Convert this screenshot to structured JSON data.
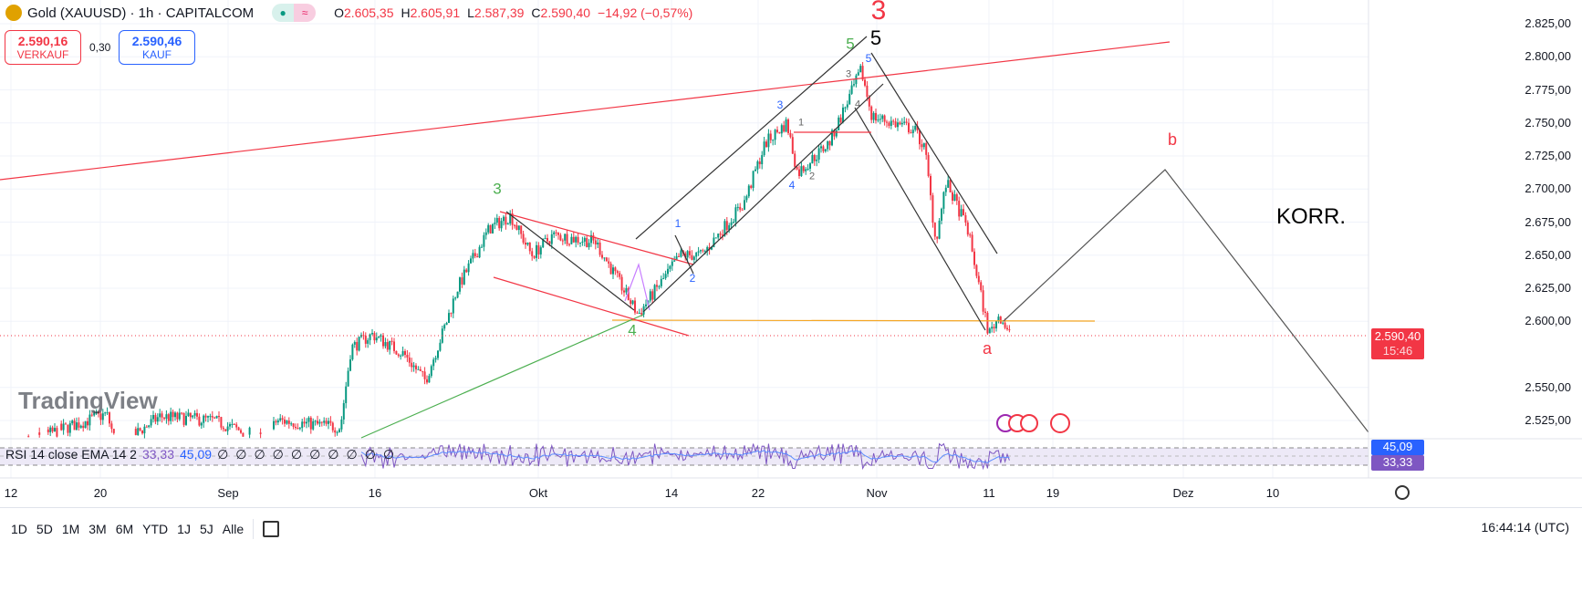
{
  "header": {
    "title": "Gold (XAUUSD) · 1h · CAPITALCOM",
    "open_label": "O",
    "open": "2.605,35",
    "high_label": "H",
    "high": "2.605,91",
    "low_label": "L",
    "low": "2.587,39",
    "close_label": "C",
    "close": "2.590,40",
    "change": "−14,92 (−0,57%)",
    "market_status_icon": "≈"
  },
  "trade": {
    "sell_price": "2.590,16",
    "sell_label": "VERKAUF",
    "spread": "0,30",
    "buy_price": "2.590,46",
    "buy_label": "KAUF"
  },
  "colors": {
    "up": "#089981",
    "down": "#f23645",
    "buy": "#2962ff",
    "rsi": "#7e57c2"
  },
  "price_axis": {
    "labels": [
      "2.825,00",
      "2.800,00",
      "2.775,00",
      "2.750,00",
      "2.725,00",
      "2.700,00",
      "2.675,00",
      "2.650,00",
      "2.625,00",
      "2.600,00",
      "2.550,00",
      "2.525,00"
    ],
    "last_price": "2.590,40",
    "countdown": "15:46"
  },
  "rsi": {
    "legend": "RSI 14 close EMA 14 2",
    "rsi_value": "33,33",
    "ema_value": "45,09",
    "na_values": [
      "∅",
      "∅",
      "∅",
      "∅",
      "∅",
      "∅",
      "∅",
      "∅",
      "∅",
      "∅"
    ]
  },
  "time_axis": {
    "labels": [
      "12",
      "20",
      "Sep",
      "16",
      "Okt",
      "14",
      "22",
      "Nov",
      "11",
      "19",
      "Dez",
      "10"
    ]
  },
  "annotations": {
    "red3": "3",
    "black5": "5",
    "green5": "5",
    "green3": "3",
    "green4": "4",
    "a": "a",
    "b": "b",
    "korr": "KORR.",
    "blue": [
      "1",
      "2",
      "3",
      "4",
      "5"
    ],
    "gray": [
      "1",
      "2",
      "3",
      "4"
    ]
  },
  "watermark": "TradingView",
  "bottom": {
    "ranges": [
      "1D",
      "5D",
      "1M",
      "3M",
      "6M",
      "YTD",
      "1J",
      "5J",
      "Alle"
    ],
    "clock": "16:44:14 (UTC)"
  },
  "chart_data": {
    "type": "candlestick",
    "symbol": "XAUUSD",
    "interval": "1h",
    "ylim": [
      2510,
      2835
    ],
    "price_path": [
      [
        "2024-08-12",
        2505
      ],
      [
        "2024-08-21",
        2530
      ],
      [
        "2024-08-22",
        2505
      ],
      [
        "2024-08-26",
        2528
      ],
      [
        "2024-08-31",
        2525
      ],
      [
        "2024-09-05",
        2510
      ],
      [
        "2024-09-06",
        2525
      ],
      [
        "2024-09-12",
        2520
      ],
      [
        "2024-09-13",
        2580
      ],
      [
        "2024-09-15",
        2590
      ],
      [
        "2024-09-18",
        2575
      ],
      [
        "2024-09-20",
        2555
      ],
      [
        "2024-09-22",
        2600
      ],
      [
        "2024-09-23",
        2625
      ],
      [
        "2024-09-26",
        2670
      ],
      [
        "2024-09-28",
        2680
      ],
      [
        "2024-09-30",
        2650
      ],
      [
        "2024-10-02",
        2665
      ],
      [
        "2024-10-06",
        2660
      ],
      [
        "2024-10-10",
        2605
      ],
      [
        "2024-10-14",
        2650
      ],
      [
        "2024-10-16",
        2650
      ],
      [
        "2024-10-20",
        2690
      ],
      [
        "2024-10-22",
        2735
      ],
      [
        "2024-10-24",
        2750
      ],
      [
        "2024-10-25",
        2712
      ],
      [
        "2024-10-28",
        2735
      ],
      [
        "2024-10-31",
        2790
      ],
      [
        "2024-11-01",
        2755
      ],
      [
        "2024-11-05",
        2745
      ],
      [
        "2024-11-06",
        2730
      ],
      [
        "2024-11-07",
        2660
      ],
      [
        "2024-11-08",
        2705
      ],
      [
        "2024-11-10",
        2670
      ],
      [
        "2024-11-12",
        2590
      ],
      [
        "2024-11-13",
        2605
      ],
      [
        "2024-11-14",
        2590.4
      ]
    ]
  }
}
